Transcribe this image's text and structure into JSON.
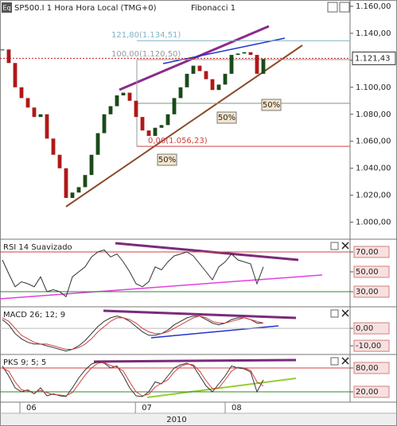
{
  "chart_data": [
    {
      "type": "candlestick",
      "title": "SP500.I 1 Hora Hora Local (TMG+0)",
      "subtitle": "Fibonacci 1",
      "x": [
        0,
        1,
        2,
        3,
        4,
        5,
        6,
        7,
        8,
        9,
        10,
        11,
        12,
        13,
        14,
        15,
        16,
        17,
        18,
        19,
        20,
        21,
        22,
        23,
        24,
        25,
        26,
        27,
        28,
        29,
        30,
        31,
        32,
        33,
        34,
        35,
        36,
        37,
        38,
        39,
        40,
        41
      ],
      "values": [
        1.128,
        1.118,
        1.1,
        1.092,
        1.085,
        1.078,
        1.08,
        1.062,
        1.05,
        1.04,
        1.018,
        1.022,
        1.026,
        1.035,
        1.05,
        1.066,
        1.08,
        1.086,
        1.094,
        1.096,
        1.09,
        1.078,
        1.068,
        1.064,
        1.07,
        1.072,
        1.08,
        1.092,
        1.1,
        1.11,
        1.116,
        1.112,
        1.106,
        1.098,
        1.102,
        1.11,
        1.124,
        1.125,
        1.126,
        1.124,
        1.11,
        1.121
      ],
      "up_color": "#1a4a1a",
      "down_color": "#b01818",
      "xlim": [
        -0.375,
        54.625
      ],
      "xticks": [
        {
          "value": 2.75,
          "label": "06"
        },
        {
          "value": 20.9,
          "label": "07"
        },
        {
          "value": 35,
          "label": "08"
        }
      ],
      "xlabel": "2010",
      "ylim": [
        0.988,
        1.1635
      ],
      "yticks": [
        {
          "value": 1.0,
          "label": "1.000,00"
        },
        {
          "value": 1.02,
          "label": "1.020,00"
        },
        {
          "value": 1.04,
          "label": "1.040,00"
        },
        {
          "value": 1.06,
          "label": "1.060,00"
        },
        {
          "value": 1.08,
          "label": "1.080,00"
        },
        {
          "value": 1.1,
          "label": "1.100,00"
        },
        {
          "value": 1.12,
          "label": "1.120,00"
        },
        {
          "value": 1.14,
          "label": "1.140,00"
        },
        {
          "value": 1.16,
          "label": "1.160,00"
        }
      ],
      "fibonacci": [
        {
          "value": 1.13451,
          "label": "121,80(1.134,51)",
          "color": "#7fb2c8"
        },
        {
          "value": 1.1205,
          "label": "100,00(1.120,50)",
          "color": "#999999"
        },
        {
          "value": 1.05623,
          "label": "0,00(1.056,23)",
          "color": "#d04040"
        }
      ],
      "current_price": {
        "value": 1.12143,
        "label": "1.121,43"
      },
      "annotations": [
        "50%",
        "50%",
        "50%"
      ]
    },
    {
      "type": "line",
      "title": "RSI 14 Suavizado",
      "x": [
        0,
        1,
        2,
        3,
        4,
        5,
        6,
        7,
        8,
        9,
        10,
        11,
        12,
        13,
        14,
        15,
        16,
        17,
        18,
        19,
        20,
        21,
        22,
        23,
        24,
        25,
        26,
        27,
        28,
        29,
        30,
        31,
        32,
        33,
        34,
        35,
        36,
        37,
        38,
        39,
        40,
        41
      ],
      "series": [
        {
          "color": "#333333",
          "values": [
            62,
            48,
            35,
            40,
            38,
            35,
            45,
            30,
            32,
            30,
            25,
            45,
            50,
            55,
            65,
            70,
            72,
            65,
            68,
            60,
            50,
            38,
            35,
            40,
            55,
            52,
            60,
            66,
            68,
            70,
            66,
            58,
            50,
            42,
            55,
            60,
            68,
            62,
            60,
            58,
            38,
            55
          ]
        }
      ],
      "ylim": [
        19.6,
        81.2
      ],
      "yticks": [
        {
          "value": 30,
          "label": "30,00"
        },
        {
          "value": 50,
          "label": "50,00"
        },
        {
          "value": 70,
          "label": "70,00"
        }
      ],
      "reference_lines": [
        {
          "value": 70,
          "color": "#d04040"
        },
        {
          "value": 30,
          "color": "#2a8a2a"
        }
      ]
    },
    {
      "type": "line",
      "title": "MACD 26; 12; 9",
      "x": [
        0,
        1,
        2,
        3,
        4,
        5,
        6,
        7,
        8,
        9,
        10,
        11,
        12,
        13,
        14,
        15,
        16,
        17,
        18,
        19,
        20,
        21,
        22,
        23,
        24,
        25,
        26,
        27,
        28,
        29,
        30,
        31,
        32,
        33,
        34,
        35,
        36,
        37,
        38,
        39,
        40,
        41
      ],
      "series": [
        {
          "color": "#333333",
          "values": [
            5,
            2,
            -3,
            -6,
            -8,
            -9,
            -9,
            -10,
            -11,
            -12,
            -13,
            -12,
            -10,
            -7,
            -3,
            1,
            4,
            6,
            7,
            6,
            4,
            1,
            -2,
            -4,
            -4,
            -3,
            -1,
            2,
            4,
            6,
            7,
            7,
            5,
            3,
            2,
            3,
            5,
            6,
            6,
            5,
            3,
            3
          ]
        },
        {
          "color": "#d04040",
          "values": [
            6,
            4,
            0,
            -4,
            -6,
            -8,
            -9,
            -9,
            -10,
            -11,
            -12,
            -12,
            -11,
            -9,
            -6,
            -2,
            1,
            4,
            6,
            6,
            5,
            3,
            0,
            -2,
            -3,
            -3,
            -2,
            0,
            2,
            4,
            6,
            7,
            6,
            4,
            3,
            3,
            4,
            5,
            6,
            5,
            4,
            3
          ]
        }
      ],
      "ylim": [
        -14.5,
        11.4
      ],
      "yticks": [
        {
          "value": -10,
          "label": "-10,00"
        },
        {
          "value": 0,
          "label": "0,00"
        }
      ],
      "reference_lines": [
        {
          "value": 0,
          "color": "#bbbbbb"
        }
      ]
    },
    {
      "type": "line",
      "title": "PKS 9; 5; 5",
      "x": [
        0,
        1,
        2,
        3,
        4,
        5,
        6,
        7,
        8,
        9,
        10,
        11,
        12,
        13,
        14,
        15,
        16,
        17,
        18,
        19,
        20,
        21,
        22,
        23,
        24,
        25,
        26,
        27,
        28,
        29,
        30,
        31,
        32,
        33,
        34,
        35,
        36,
        37,
        38,
        39,
        40,
        41
      ],
      "series": [
        {
          "color": "#333333",
          "values": [
            85,
            60,
            30,
            20,
            25,
            15,
            30,
            10,
            15,
            10,
            8,
            30,
            55,
            75,
            90,
            95,
            92,
            80,
            85,
            60,
            30,
            10,
            8,
            20,
            45,
            40,
            60,
            80,
            88,
            92,
            85,
            60,
            35,
            20,
            40,
            60,
            85,
            80,
            78,
            70,
            20,
            50
          ]
        },
        {
          "color": "#d04040",
          "values": [
            80,
            72,
            45,
            25,
            22,
            20,
            23,
            18,
            13,
            12,
            10,
            18,
            40,
            62,
            80,
            92,
            94,
            86,
            82,
            72,
            45,
            20,
            10,
            14,
            32,
            42,
            50,
            70,
            84,
            90,
            88,
            72,
            48,
            28,
            30,
            50,
            72,
            82,
            80,
            74,
            45,
            35
          ]
        }
      ],
      "ylim": [
        -4,
        110
      ],
      "yticks": [
        {
          "value": 20,
          "label": "20,00"
        },
        {
          "value": 80,
          "label": "80,00"
        }
      ],
      "reference_lines": [
        {
          "value": 80,
          "color": "#d04040"
        },
        {
          "value": 20,
          "color": "#2a8a2a"
        }
      ]
    }
  ]
}
